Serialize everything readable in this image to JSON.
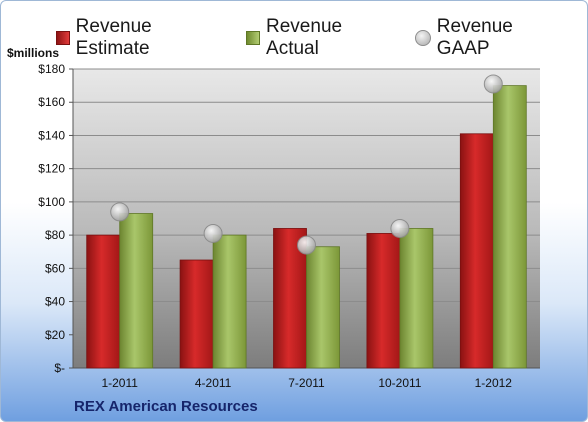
{
  "colors": {
    "estimate": "#c8201f",
    "actual": "#8fae4a",
    "gaap": "#bdbdbd",
    "title": "#16256b"
  },
  "unit_label": "$millions",
  "company_label": "REX American Resources",
  "chart_data": {
    "type": "bar",
    "title": "",
    "xlabel": "",
    "ylabel": "$millions",
    "categories": [
      "1-2011",
      "4-2011",
      "7-2011",
      "10-2011",
      "1-2012"
    ],
    "ylim": [
      0,
      180
    ],
    "yticks": [
      0,
      20,
      40,
      60,
      80,
      100,
      120,
      140,
      160,
      180
    ],
    "ytick_labels": [
      "$-",
      "$20",
      "$40",
      "$60",
      "$80",
      "$100",
      "$120",
      "$140",
      "$160",
      "$180"
    ],
    "grid": true,
    "legend_position": "top",
    "series": [
      {
        "name": "Revenue Estimate",
        "kind": "bar",
        "values": [
          80,
          65,
          84,
          81,
          141
        ]
      },
      {
        "name": "Revenue Actual",
        "kind": "bar",
        "values": [
          93,
          80,
          73,
          84,
          170
        ]
      },
      {
        "name": "Revenue GAAP",
        "kind": "marker",
        "values": [
          94,
          81,
          74,
          84,
          171
        ]
      }
    ]
  }
}
